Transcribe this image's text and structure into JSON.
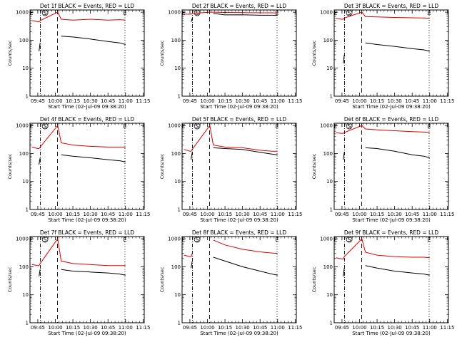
{
  "figure": {
    "common": {
      "xlabel": "Start Time (02-Jul-09 09:38:20)",
      "ylabel": "Counts/sec",
      "xticks": [
        {
          "t": 585,
          "label": "09:45"
        },
        {
          "t": 600,
          "label": "10:00"
        },
        {
          "t": 615,
          "label": "10:15"
        },
        {
          "t": 630,
          "label": "10:30"
        },
        {
          "t": 645,
          "label": "10:45"
        },
        {
          "t": 660,
          "label": "11:00"
        },
        {
          "t": 675,
          "label": "11:15"
        }
      ],
      "yticks": [
        {
          "v": 1,
          "label": "1"
        },
        {
          "v": 10,
          "label": "10"
        },
        {
          "v": 100,
          "label": "100"
        },
        {
          "v": 1000,
          "label": "1000"
        }
      ],
      "xlim": [
        578.33,
        676
      ],
      "ylim": [
        1,
        1200
      ],
      "yscale": "log",
      "markers": [
        {
          "t": 579.5,
          "label": "E"
        },
        {
          "t": 591.2,
          "label": "S"
        },
        {
          "t": 659.5,
          "label": "E"
        }
      ],
      "vlines": [
        {
          "t": 587.2,
          "style": "dashdot"
        },
        {
          "t": 601.8,
          "style": "dashed"
        },
        {
          "t": 659.5,
          "style": "dotted"
        }
      ],
      "colors": {
        "events": "#000000",
        "lld": "#dd0000"
      }
    },
    "panels": [
      {
        "title": "Det 1f BLACK = Events, RED = LLD"
      },
      {
        "title": "Det 2f BLACK = Events, RED = LLD"
      },
      {
        "title": "Det 3f BLACK = Events, RED = LLD"
      },
      {
        "title": "Det 4f BLACK = Events, RED = LLD"
      },
      {
        "title": "Det 5f BLACK = Events, RED = LLD"
      },
      {
        "title": "Det 6f BLACK = Events, RED = LLD"
      },
      {
        "title": "Det 7f BLACK = Events, RED = LLD"
      },
      {
        "title": "Det 8f BLACK = Events, RED = LLD"
      },
      {
        "title": "Det 9f BLACK = Events, RED = LLD"
      }
    ]
  },
  "chart_data": [
    {
      "type": "line",
      "title": "Det 1f BLACK = Events, RED = LLD",
      "xlabel": "Start Time (02-Jul-09 09:38:20)",
      "ylabel": "Counts/sec",
      "yscale": "log",
      "ylim": [
        1,
        1200
      ],
      "xlim": [
        "09:38",
        "11:16"
      ],
      "x": [
        "09:40",
        "09:45",
        "09:46",
        "09:47",
        "10:02",
        "10:05",
        "10:15",
        "10:30",
        "10:45",
        "10:55",
        "11:00"
      ],
      "series": [
        {
          "name": "Events",
          "values": [
            null,
            null,
            40,
            80,
            null,
            140,
            130,
            110,
            90,
            80,
            70
          ]
        },
        {
          "name": "LLD",
          "values": [
            500,
            460,
            450,
            500,
            1000,
            560,
            520,
            560,
            520,
            540,
            520
          ]
        }
      ]
    },
    {
      "type": "line",
      "title": "Det 2f BLACK = Events, RED = LLD",
      "xlabel": "Start Time (02-Jul-09 09:38:20)",
      "ylabel": "Counts/sec",
      "yscale": "log",
      "ylim": [
        1,
        1200
      ],
      "xlim": [
        "09:38",
        "11:16"
      ],
      "x": [
        "09:40",
        "09:45",
        "09:46",
        "09:47",
        "10:02",
        "10:05",
        "10:15",
        "10:30",
        "10:45",
        "10:55",
        "11:00"
      ],
      "series": [
        {
          "name": "Events",
          "values": [
            null,
            null,
            450,
            600,
            null,
            900,
            800,
            810,
            780,
            780,
            770
          ]
        },
        {
          "name": "LLD",
          "values": [
            850,
            850,
            850,
            900,
            1000,
            1000,
            980,
            960,
            950,
            950,
            940
          ]
        }
      ]
    },
    {
      "type": "line",
      "title": "Det 3f BLACK = Events, RED = LLD",
      "xlabel": "Start Time (02-Jul-09 09:38:20)",
      "ylabel": "Counts/sec",
      "yscale": "log",
      "ylim": [
        1,
        1200
      ],
      "xlim": [
        "09:38",
        "11:16"
      ],
      "x": [
        "09:40",
        "09:45",
        "09:46",
        "09:47",
        "10:02",
        "10:05",
        "10:15",
        "10:30",
        "10:45",
        "10:55",
        "11:00"
      ],
      "series": [
        {
          "name": "Events",
          "values": [
            null,
            null,
            15,
            30,
            null,
            80,
            70,
            60,
            50,
            45,
            40
          ]
        },
        {
          "name": "LLD",
          "values": [
            600,
            560,
            560,
            620,
            1000,
            700,
            680,
            650,
            630,
            620,
            600
          ]
        }
      ]
    },
    {
      "type": "line",
      "title": "Det 4f BLACK = Events, RED = LLD",
      "xlabel": "Start Time (02-Jul-09 09:38:20)",
      "ylabel": "Counts/sec",
      "yscale": "log",
      "ylim": [
        1,
        1200
      ],
      "xlim": [
        "09:38",
        "11:16"
      ],
      "x": [
        "09:40",
        "09:45",
        "09:46",
        "09:47",
        "10:02",
        "10:05",
        "10:15",
        "10:30",
        "10:45",
        "10:55",
        "11:00"
      ],
      "series": [
        {
          "name": "Events",
          "values": [
            null,
            null,
            40,
            70,
            null,
            90,
            80,
            70,
            60,
            55,
            50
          ]
        },
        {
          "name": "LLD",
          "values": [
            170,
            150,
            150,
            170,
            1000,
            240,
            200,
            180,
            170,
            170,
            170
          ]
        }
      ]
    },
    {
      "type": "line",
      "title": "Det 5f BLACK = Events, RED = LLD",
      "xlabel": "Start Time (02-Jul-09 09:38:20)",
      "ylabel": "Counts/sec",
      "yscale": "log",
      "ylim": [
        1,
        1200
      ],
      "xlim": [
        "09:38",
        "11:16"
      ],
      "x": [
        "09:40",
        "09:45",
        "09:46",
        "09:47",
        "10:02",
        "10:05",
        "10:15",
        "10:30",
        "10:45",
        "10:55",
        "11:00"
      ],
      "series": [
        {
          "name": "Events",
          "values": [
            null,
            null,
            60,
            110,
            null,
            160,
            150,
            140,
            110,
            95,
            90
          ]
        },
        {
          "name": "LLD",
          "values": [
            140,
            120,
            120,
            140,
            1000,
            200,
            170,
            160,
            130,
            120,
            120
          ]
        }
      ]
    },
    {
      "type": "line",
      "title": "Det 6f BLACK = Events, RED = LLD",
      "xlabel": "Start Time (02-Jul-09 09:38:20)",
      "ylabel": "Counts/sec",
      "yscale": "log",
      "ylim": [
        1,
        1200
      ],
      "xlim": [
        "09:38",
        "11:16"
      ],
      "x": [
        "09:40",
        "09:45",
        "09:46",
        "09:47",
        "10:02",
        "10:05",
        "10:15",
        "10:30",
        "10:45",
        "10:55",
        "11:00"
      ],
      "series": [
        {
          "name": "Events",
          "values": [
            null,
            null,
            60,
            110,
            null,
            160,
            150,
            120,
            90,
            80,
            70
          ]
        },
        {
          "name": "LLD",
          "values": [
            550,
            520,
            520,
            560,
            1000,
            750,
            700,
            650,
            600,
            580,
            570
          ]
        }
      ]
    },
    {
      "type": "line",
      "title": "Det 7f BLACK = Events, RED = LLD",
      "xlabel": "Start Time (02-Jul-09 09:38:20)",
      "ylabel": "Counts/sec",
      "yscale": "log",
      "ylim": [
        1,
        1200
      ],
      "xlim": [
        "09:38",
        "11:16"
      ],
      "x": [
        "09:40",
        "09:45",
        "09:46",
        "09:47",
        "10:02",
        "10:05",
        "10:15",
        "10:30",
        "10:45",
        "10:55",
        "11:00"
      ],
      "series": [
        {
          "name": "Events",
          "values": [
            null,
            null,
            45,
            80,
            null,
            80,
            70,
            65,
            60,
            55,
            50
          ]
        },
        {
          "name": "LLD",
          "values": [
            120,
            110,
            110,
            130,
            1000,
            160,
            130,
            120,
            110,
            110,
            110
          ]
        }
      ]
    },
    {
      "type": "line",
      "title": "Det 8f BLACK = Events, RED = LLD",
      "xlabel": "Start Time (02-Jul-09 09:38:20)",
      "ylabel": "Counts/sec",
      "yscale": "log",
      "ylim": [
        1,
        1200
      ],
      "xlim": [
        "09:38",
        "11:16"
      ],
      "x": [
        "09:40",
        "09:45",
        "09:46",
        "09:47",
        "10:02",
        "10:05",
        "10:15",
        "10:30",
        "10:45",
        "10:55",
        "11:00"
      ],
      "series": [
        {
          "name": "Events",
          "values": [
            null,
            null,
            90,
            160,
            null,
            220,
            160,
            100,
            70,
            55,
            50
          ]
        },
        {
          "name": "LLD",
          "values": [
            260,
            230,
            230,
            300,
            null,
            900,
            600,
            420,
            340,
            310,
            300
          ]
        }
      ]
    },
    {
      "type": "line",
      "title": "Det 9f BLACK = Events, RED = LLD",
      "xlabel": "Start Time (02-Jul-09 09:38:20)",
      "ylabel": "Counts/sec",
      "yscale": "log",
      "ylim": [
        1,
        1200
      ],
      "xlim": [
        "09:38",
        "11:16"
      ],
      "x": [
        "09:40",
        "09:45",
        "09:46",
        "09:47",
        "10:02",
        "10:05",
        "10:15",
        "10:30",
        "10:45",
        "10:55",
        "11:00"
      ],
      "series": [
        {
          "name": "Events",
          "values": [
            null,
            null,
            45,
            90,
            null,
            110,
            90,
            70,
            60,
            55,
            50
          ]
        },
        {
          "name": "LLD",
          "values": [
            210,
            190,
            190,
            230,
            1000,
            330,
            260,
            230,
            220,
            220,
            210
          ]
        }
      ]
    }
  ]
}
